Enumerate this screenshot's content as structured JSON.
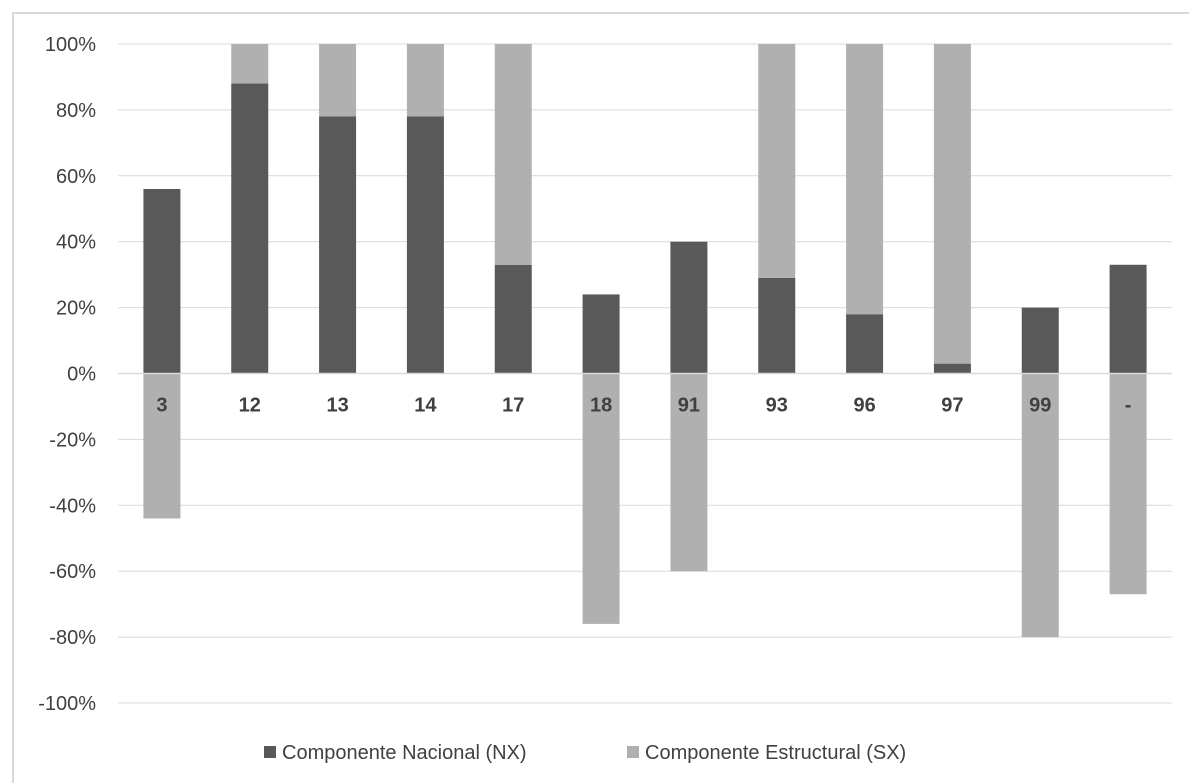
{
  "colors": {
    "nacional": "#595959",
    "estructural": "#b0b0b0",
    "gridline": "#d9d9d9",
    "axis_text": "#404040",
    "category_text": "#404040"
  },
  "chart_data": {
    "type": "bar",
    "stacked": true,
    "categories": [
      "3",
      "12",
      "13",
      "14",
      "17",
      "18",
      "91",
      "93",
      "96",
      "97",
      "99",
      "-"
    ],
    "series": [
      {
        "name": "Componente Nacional (NX)",
        "values": [
          56,
          88,
          78,
          78,
          33,
          24,
          40,
          29,
          18,
          3,
          20,
          33
        ]
      },
      {
        "name": "Componente Estructural (SX)",
        "values": [
          -44,
          12,
          22,
          22,
          67,
          -76,
          -60,
          71,
          82,
          97,
          -80,
          -67
        ]
      }
    ],
    "y_tick_labels": [
      "100%",
      "80%",
      "60%",
      "40%",
      "20%",
      "0%",
      "-20%",
      "-40%",
      "-60%",
      "-80%",
      "-100%"
    ],
    "ylim": [
      -100,
      100
    ],
    "grid": true,
    "legend_position": "bottom"
  }
}
